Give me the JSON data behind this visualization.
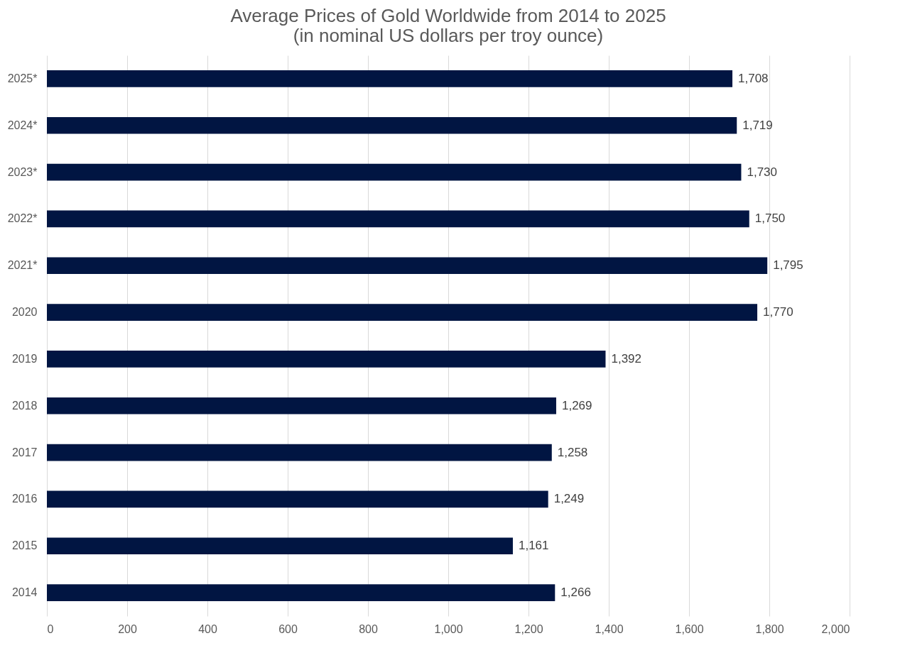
{
  "chart_data": {
    "type": "bar",
    "orientation": "horizontal",
    "title": [
      "Average Prices of Gold Worldwide from 2014 to 2025",
      "(in nominal US dollars per troy ounce)"
    ],
    "categories": [
      "2025*",
      "2024*",
      "2023*",
      "2022*",
      "2021*",
      "2020",
      "2019",
      "2018",
      "2017",
      "2016",
      "2015",
      "2014"
    ],
    "values": [
      1708,
      1719,
      1730,
      1750,
      1795,
      1770,
      1392,
      1269,
      1258,
      1249,
      1161,
      1266
    ],
    "value_labels": [
      "1,708",
      "1,719",
      "1,730",
      "1,750",
      "1,795",
      "1,770",
      "1,392",
      "1,269",
      "1,258",
      "1,249",
      "1,161",
      "1,266"
    ],
    "color": "#011542",
    "xlim": [
      0,
      2000
    ],
    "xticks": [
      0,
      200,
      400,
      600,
      800,
      {
        "value": 1000,
        "label": "1,000"
      },
      {
        "value": 1200,
        "label": "1,200"
      },
      {
        "value": 1400,
        "label": "1,400"
      },
      {
        "value": 1600,
        "label": "1,600"
      },
      {
        "value": 1800,
        "label": "1,800"
      },
      {
        "value": 2000,
        "label": "2,000"
      }
    ],
    "grid": "x"
  }
}
